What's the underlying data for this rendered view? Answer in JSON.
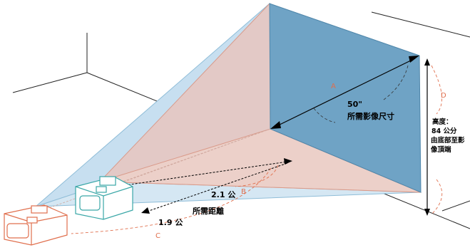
{
  "screen": {
    "diagonal_value": "50\"",
    "diagonal_caption": "所需影像尺寸",
    "letter_a": "A",
    "letter_b": "B",
    "letter_c": "C",
    "letter_d": "D"
  },
  "distances": {
    "far_value": "2.1 公",
    "caption": "所需距離",
    "near_value": "1.9 公"
  },
  "height": {
    "heading": "高度：",
    "value": "84 公分",
    "caption_line1": "由底部至影",
    "caption_line2": "像頂端"
  },
  "colors": {
    "screen_fill": "#6fa3c5",
    "blue_cone": "#c7dff0",
    "pink_cone": "#e8c6be",
    "orange_line": "#e06f4d",
    "teal_projector": "#3aa7a7",
    "orange_projector": "#e06f4d"
  }
}
